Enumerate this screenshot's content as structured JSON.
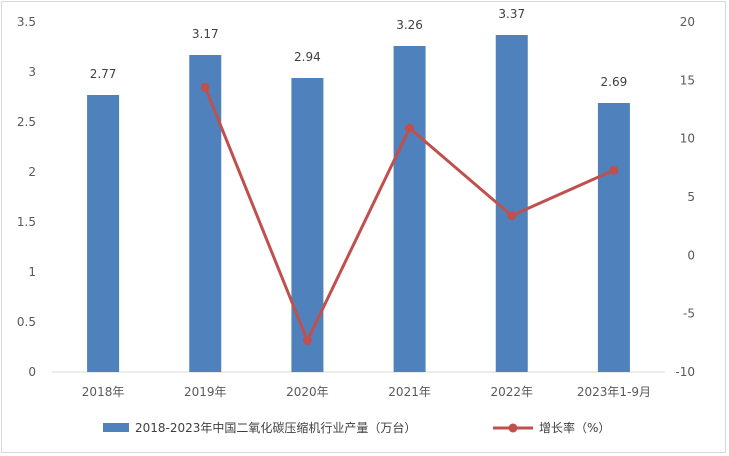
{
  "chart_data": {
    "type": "bar",
    "categories": [
      "2018年",
      "2019年",
      "2020年",
      "2021年",
      "2022年",
      "2023年1-9月"
    ],
    "series": [
      {
        "name": "2018-2023年中国二氧化碳压缩机行业产量（万台）",
        "type": "bar",
        "axis": "left",
        "values": [
          2.77,
          3.17,
          2.94,
          3.26,
          3.37,
          2.69
        ],
        "data_labels": [
          "2.77",
          "3.17",
          "2.94",
          "3.26",
          "3.37",
          "2.69"
        ],
        "color": "#4f81bd"
      },
      {
        "name": "增长率（%）",
        "type": "line",
        "axis": "right",
        "values": [
          null,
          14.4,
          -7.3,
          10.9,
          3.4,
          7.3
        ],
        "color": "#c0504d"
      }
    ],
    "y_left": {
      "min": 0,
      "max": 3.5,
      "ticks": [
        "0",
        "0.5",
        "1",
        "1.5",
        "2",
        "2.5",
        "3",
        "3.5"
      ]
    },
    "y_right": {
      "min": -10,
      "max": 20,
      "ticks": [
        "-10",
        "-5",
        "0",
        "5",
        "10",
        "15",
        "20"
      ]
    },
    "grid": false,
    "legend_position": "bottom"
  }
}
